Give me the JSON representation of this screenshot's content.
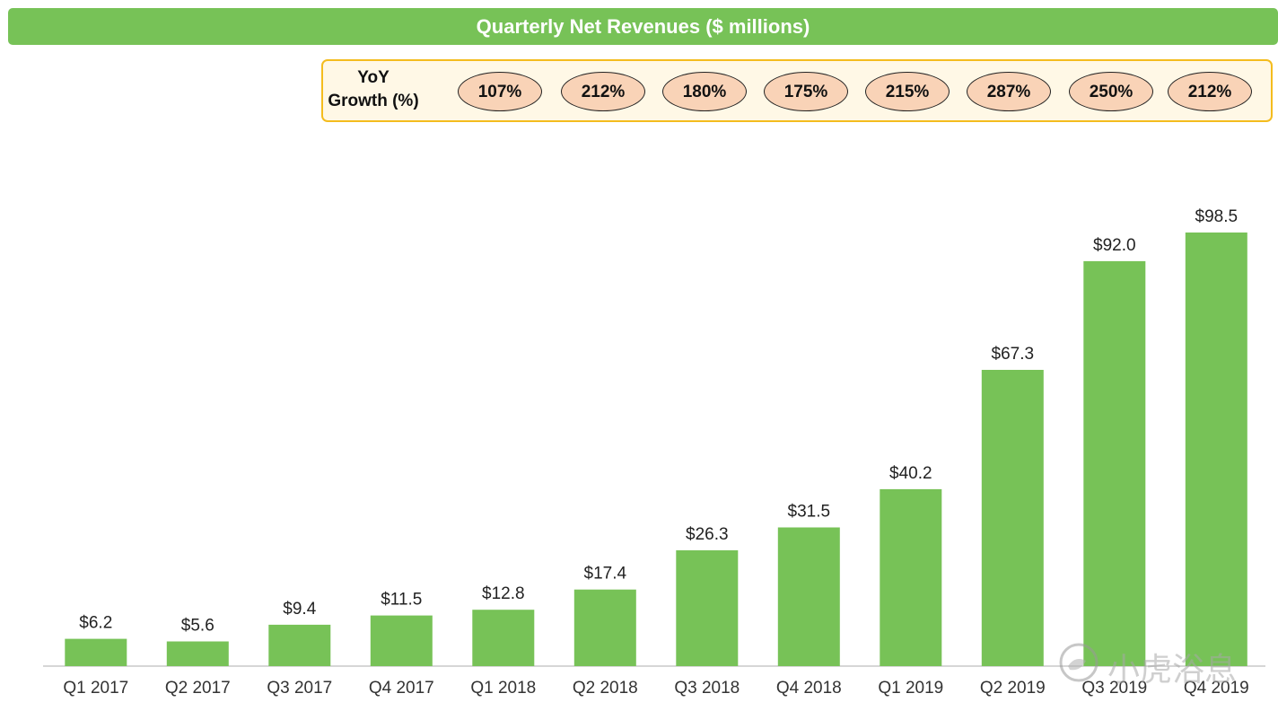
{
  "chart_data": {
    "type": "bar",
    "title": "Quarterly Net Revenues ($ millions)",
    "categories": [
      "Q1 2017",
      "Q2 2017",
      "Q3 2017",
      "Q4 2017",
      "Q1 2018",
      "Q2 2018",
      "Q3 2018",
      "Q4 2018",
      "Q1 2019",
      "Q2 2019",
      "Q3 2019",
      "Q4 2019"
    ],
    "values": [
      6.2,
      5.6,
      9.4,
      11.5,
      12.8,
      17.4,
      26.3,
      31.5,
      40.2,
      67.3,
      92.0,
      98.5
    ],
    "value_labels": [
      "$6.2",
      "$5.6",
      "$9.4",
      "$11.5",
      "$12.8",
      "$17.4",
      "$26.3",
      "$31.5",
      "$40.2",
      "$67.3",
      "$92.0",
      "$98.5"
    ],
    "xlabel": "",
    "ylabel": "",
    "ylim": [
      0,
      98.5
    ],
    "grid": false,
    "bar_color": "#77c257",
    "yoy_growth": {
      "label_line1": "YoY",
      "label_line2": "Growth (%)",
      "values": [
        "107%",
        "212%",
        "180%",
        "175%",
        "215%",
        "287%",
        "250%",
        "212%"
      ]
    }
  },
  "colors": {
    "title_bg": "#77c257",
    "panel_bg": "#fff8e6",
    "panel_border": "#f4bc1e",
    "pill_fill": "#f9d3b7"
  },
  "watermark": {
    "text": "小虎浴息"
  }
}
